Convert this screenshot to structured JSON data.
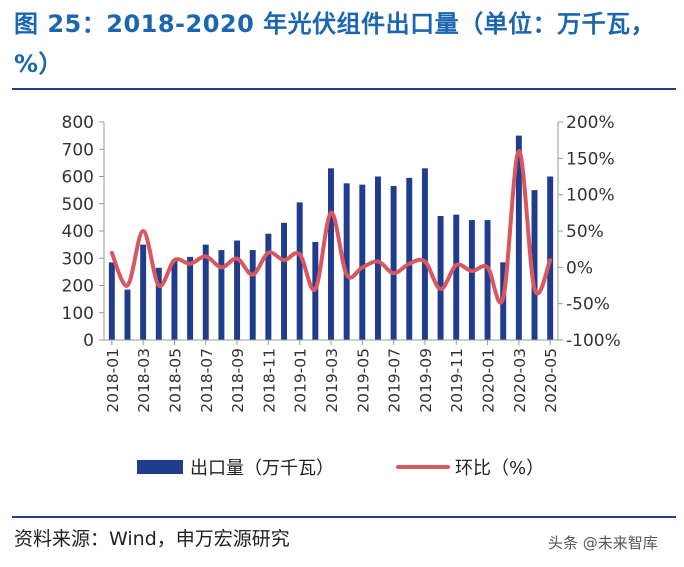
{
  "header": {
    "title": "图 25：2018-2020 年光伏组件出口量（单位：万千瓦，%）"
  },
  "footer": {
    "source": "资料来源：Wind，申万宏源研究",
    "watermark": "头条 @未来智库"
  },
  "colors": {
    "bar": "#1f3d8c",
    "line": "#d9575f",
    "title": "#1a66b0"
  },
  "chart_data": {
    "type": "bar",
    "categories": [
      "2018-01",
      "2018-02",
      "2018-03",
      "2018-04",
      "2018-05",
      "2018-06",
      "2018-07",
      "2018-08",
      "2018-09",
      "2018-10",
      "2018-11",
      "2018-12",
      "2019-01",
      "2019-02",
      "2019-03",
      "2019-04",
      "2019-05",
      "2019-06",
      "2019-07",
      "2019-08",
      "2019-09",
      "2019-10",
      "2019-11",
      "2019-12",
      "2020-01",
      "2020-02",
      "2020-03",
      "2020-04",
      "2020-05"
    ],
    "x_tick_labels": [
      "2018-01",
      "2018-03",
      "2018-05",
      "2018-07",
      "2018-09",
      "2018-11",
      "2019-01",
      "2019-03",
      "2019-05",
      "2019-07",
      "2019-09",
      "2019-11",
      "2020-01",
      "2020-03",
      "2020-05"
    ],
    "series": [
      {
        "name": "出口量（万千瓦）",
        "type": "bar",
        "axis": "left",
        "values": [
          285,
          185,
          350,
          265,
          290,
          305,
          350,
          330,
          365,
          330,
          390,
          430,
          505,
          360,
          630,
          575,
          570,
          600,
          565,
          595,
          630,
          455,
          460,
          440,
          440,
          285,
          750,
          550,
          600
        ]
      },
      {
        "name": "环比（%）",
        "type": "line",
        "axis": "right",
        "values": [
          20,
          -25,
          50,
          -25,
          10,
          5,
          15,
          0,
          12,
          -10,
          20,
          10,
          18,
          -30,
          75,
          -10,
          0,
          8,
          -8,
          5,
          8,
          -30,
          3,
          -5,
          0,
          -42,
          160,
          -30,
          10
        ]
      }
    ],
    "left_axis": {
      "ylim": [
        0,
        800
      ],
      "ticks": [
        "0",
        "100",
        "200",
        "300",
        "400",
        "500",
        "600",
        "700",
        "800"
      ]
    },
    "right_axis": {
      "ylim": [
        -100,
        200
      ],
      "ticks": [
        "-100%",
        "-50%",
        "0%",
        "50%",
        "100%",
        "150%",
        "200%"
      ]
    },
    "legend": [
      "出口量（万千瓦）",
      "环比（%）"
    ],
    "legend_position": "bottom"
  }
}
